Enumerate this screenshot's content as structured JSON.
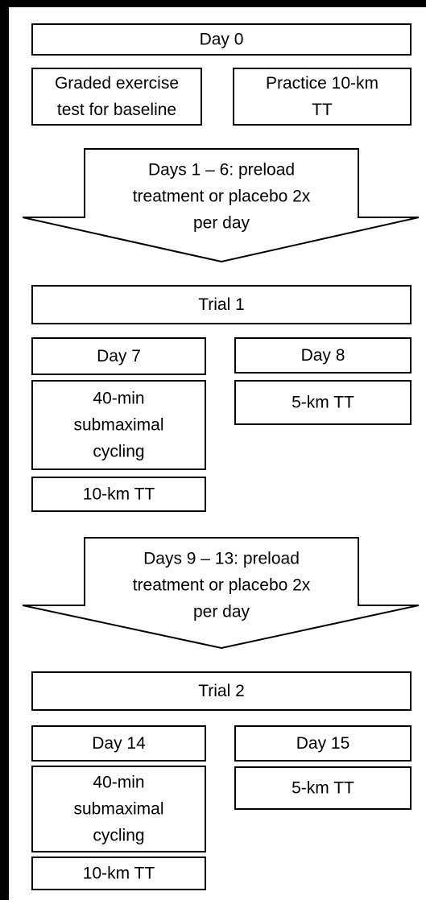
{
  "boxes": [
    {
      "lines": [
        "Day 0"
      ]
    },
    {
      "lines": [
        "Graded exercise",
        "test for baseline"
      ]
    },
    {
      "lines": [
        "Practice 10-km",
        "TT"
      ]
    },
    {
      "lines": [
        "Trial 1"
      ]
    },
    {
      "lines": [
        "Day 7"
      ]
    },
    {
      "lines": [
        "40-min",
        "submaximal",
        "cycling"
      ]
    },
    {
      "lines": [
        "10-km TT"
      ]
    },
    {
      "lines": [
        "Day 8"
      ]
    },
    {
      "lines": [
        "5-km TT"
      ]
    },
    {
      "lines": [
        "Trial 2"
      ]
    },
    {
      "lines": [
        "Day 14"
      ]
    },
    {
      "lines": [
        "40-min",
        "submaximal",
        "cycling"
      ]
    },
    {
      "lines": [
        "10-km TT"
      ]
    },
    {
      "lines": [
        "Day 15"
      ]
    },
    {
      "lines": [
        "5-km TT"
      ]
    }
  ],
  "arrows": [
    {
      "lines": [
        "Days 1 – 6: preload",
        "treatment or placebo 2x",
        "per day"
      ]
    },
    {
      "lines": [
        "Days 9 – 13: preload",
        "treatment or placebo 2x",
        "per day"
      ]
    }
  ]
}
